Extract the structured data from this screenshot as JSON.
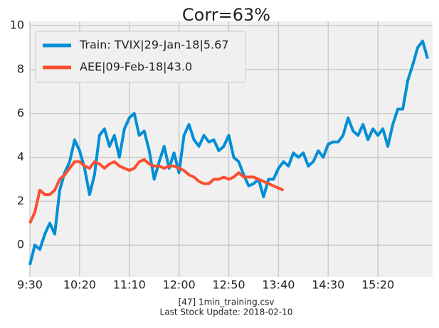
{
  "chart_data": {
    "type": "line",
    "title": "Corr=63%",
    "annotations": [
      "[47] 1min_training.csv",
      "Last Stock Update: 2018-02-10"
    ],
    "x": [
      0,
      5,
      10,
      15,
      20,
      25,
      30,
      35,
      40,
      45,
      50,
      55,
      60,
      65,
      70,
      75,
      80,
      85,
      90,
      95,
      100,
      105,
      110,
      115,
      120,
      125,
      130,
      135,
      140,
      145,
      150,
      155,
      160,
      165,
      170,
      175,
      180,
      185,
      190,
      195,
      200,
      205,
      210,
      215,
      220,
      225,
      230,
      235,
      240,
      245,
      250,
      255,
      260,
      265,
      270,
      275,
      280,
      285,
      290,
      295,
      300,
      305,
      310,
      315,
      320,
      325,
      330,
      335,
      340,
      345,
      350,
      355,
      360,
      365,
      370,
      375,
      380,
      385,
      390,
      395,
      400
    ],
    "series": [
      {
        "name": "Train: TVIX|29-Jan-18|5.67",
        "color": "#008fd5",
        "values": [
          -0.9,
          0,
          -0.2,
          0.5,
          1,
          0.5,
          2.5,
          3.3,
          3.8,
          4.8,
          4.3,
          3.5,
          2.3,
          3.2,
          5.0,
          5.3,
          4.5,
          5.0,
          4.0,
          5.3,
          5.8,
          6.0,
          5.0,
          5.2,
          4.3,
          3.0,
          3.8,
          4.5,
          3.5,
          4.2,
          3.3,
          5.0,
          5.5,
          4.8,
          4.5,
          5.0,
          4.7,
          4.8,
          4.3,
          4.5,
          5.0,
          4.0,
          3.8,
          3.2,
          2.7,
          2.8,
          3.0,
          2.2,
          3.0,
          3.0,
          3.5,
          3.8,
          3.6,
          4.2,
          4.0,
          4.2,
          3.6,
          3.8,
          4.3,
          4.0,
          4.6,
          4.7,
          4.7,
          5.0,
          5.8,
          5.2,
          5.0,
          5.5,
          4.8,
          5.3,
          5.0,
          5.3,
          4.5,
          5.5,
          6.2,
          6.2,
          7.5,
          8.2,
          9.0,
          9.3,
          8.5
        ]
      },
      {
        "name": "AEE|09-Feb-18|43.0",
        "color": "#fc4f30",
        "values": [
          1.0,
          1.5,
          2.5,
          2.3,
          2.3,
          2.5,
          3.0,
          3.2,
          3.5,
          3.8,
          3.8,
          3.6,
          3.5,
          3.8,
          3.7,
          3.5,
          3.7,
          3.8,
          3.6,
          3.5,
          3.4,
          3.5,
          3.8,
          3.9,
          3.7,
          3.6,
          3.6,
          3.5,
          3.6,
          3.6,
          3.5,
          3.4,
          3.2,
          3.1,
          2.9,
          2.8,
          2.8,
          3.0,
          3.0,
          3.1,
          3.0,
          3.1,
          3.3,
          3.1,
          3.1,
          3.1,
          3.0,
          2.9,
          2.8,
          2.7,
          2.6,
          2.5,
          null,
          null,
          null,
          null,
          null,
          null,
          null,
          null,
          null,
          null,
          null,
          null,
          null,
          null,
          null,
          null,
          null,
          null,
          null,
          null,
          null,
          null,
          null,
          null,
          null,
          null,
          null,
          null,
          null
        ]
      }
    ],
    "xlim": [
      0,
      405
    ],
    "xticks": [
      {
        "value": 0,
        "label": "9:30"
      },
      {
        "value": 50,
        "label": "10:20"
      },
      {
        "value": 100,
        "label": "11:10"
      },
      {
        "value": 150,
        "label": "12:00"
      },
      {
        "value": 200,
        "label": "12:50"
      },
      {
        "value": 250,
        "label": "13:40"
      },
      {
        "value": 300,
        "label": "14:30"
      },
      {
        "value": 350,
        "label": "15:20"
      }
    ],
    "ylim": [
      -1.45,
      10.2
    ],
    "yticks": [
      0,
      2,
      4,
      6,
      8,
      10
    ],
    "grid": true,
    "legend": "upper left"
  }
}
